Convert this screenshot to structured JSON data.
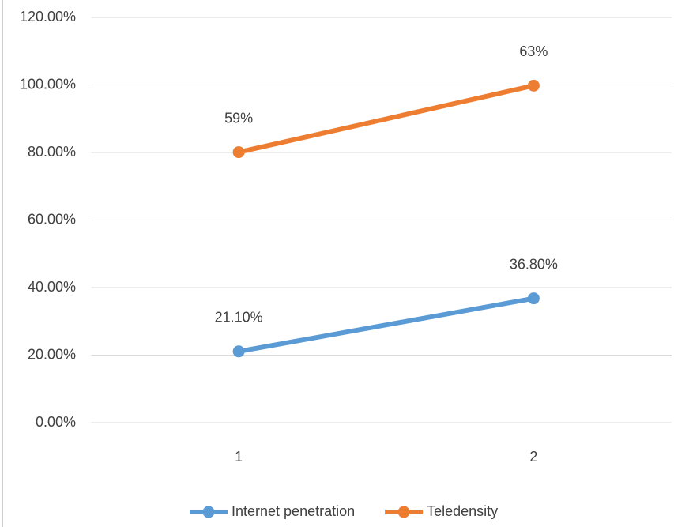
{
  "chart_data": {
    "type": "line",
    "stacked": true,
    "categories": [
      "1",
      "2"
    ],
    "series": [
      {
        "name": "Internet penetration",
        "color": "#5b9bd5",
        "values": [
          21.1,
          36.8
        ],
        "value_labels": [
          "21.10%",
          "36.80%"
        ]
      },
      {
        "name": "Teledensity",
        "color": "#ed7d31",
        "values": [
          59,
          63
        ],
        "value_labels": [
          "59%",
          "63%"
        ]
      }
    ],
    "ylim": [
      0,
      120
    ],
    "yticks": [
      {
        "value": 0,
        "label": "0.00%"
      },
      {
        "value": 20,
        "label": "20.00%"
      },
      {
        "value": 40,
        "label": "40.00%"
      },
      {
        "value": 60,
        "label": "60.00%"
      },
      {
        "value": 80,
        "label": "80.00%"
      },
      {
        "value": 100,
        "label": "100.00%"
      },
      {
        "value": 120,
        "label": "120.00%"
      }
    ],
    "grid": true,
    "legend": "bottom"
  }
}
